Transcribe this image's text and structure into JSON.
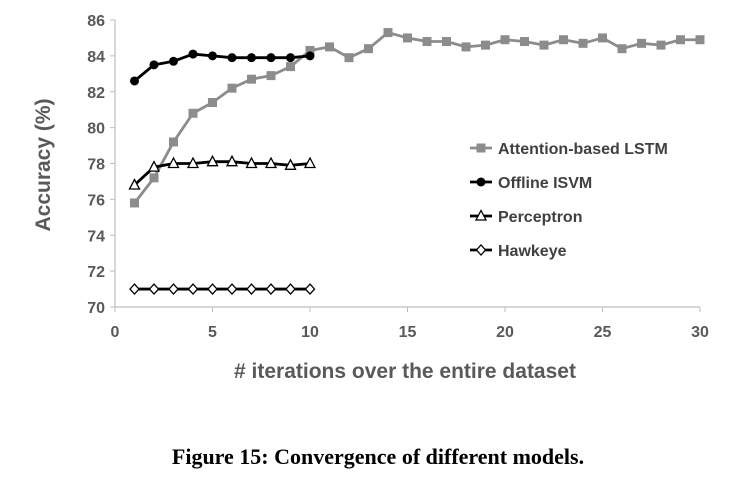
{
  "caption": "Figure 15: Convergence of different models.",
  "chart_data": {
    "type": "line",
    "xlabel": "# iterations over the entire dataset",
    "ylabel": "Accuracy (%)",
    "xlim": [
      0,
      30
    ],
    "ylim": [
      70,
      86
    ],
    "xticks": [
      0,
      5,
      10,
      15,
      20,
      25,
      30
    ],
    "yticks": [
      70,
      72,
      74,
      76,
      78,
      80,
      82,
      84,
      86
    ],
    "grid": false,
    "legend_position": "right",
    "series": [
      {
        "name": "Attention-based LSTM",
        "color": "#8c8c8c",
        "marker": "square",
        "x": [
          1,
          2,
          3,
          4,
          5,
          6,
          7,
          8,
          9,
          10,
          11,
          12,
          13,
          14,
          15,
          16,
          17,
          18,
          19,
          20,
          21,
          22,
          23,
          24,
          25,
          26,
          27,
          28,
          29,
          30
        ],
        "values": [
          75.8,
          77.2,
          79.2,
          80.8,
          81.4,
          82.2,
          82.7,
          82.9,
          83.4,
          84.3,
          84.5,
          83.9,
          84.4,
          85.3,
          85.0,
          84.8,
          84.8,
          84.5,
          84.6,
          84.9,
          84.8,
          84.6,
          84.9,
          84.7,
          85.0,
          84.4,
          84.7,
          84.6,
          84.9,
          84.9
        ]
      },
      {
        "name": "Offline ISVM",
        "color": "#000000",
        "marker": "circle",
        "x": [
          1,
          2,
          3,
          4,
          5,
          6,
          7,
          8,
          9,
          10
        ],
        "values": [
          82.6,
          83.5,
          83.7,
          84.1,
          84.0,
          83.9,
          83.9,
          83.9,
          83.9,
          84.0
        ]
      },
      {
        "name": "Perceptron",
        "color": "#000000",
        "marker": "triangle",
        "x": [
          1,
          2,
          3,
          4,
          5,
          6,
          7,
          8,
          9,
          10
        ],
        "values": [
          76.8,
          77.8,
          78.0,
          78.0,
          78.1,
          78.1,
          78.0,
          78.0,
          77.9,
          78.0
        ]
      },
      {
        "name": "Hawkeye",
        "color": "#000000",
        "marker": "diamond",
        "x": [
          1,
          2,
          3,
          4,
          5,
          6,
          7,
          8,
          9,
          10
        ],
        "values": [
          71.0,
          71.0,
          71.0,
          71.0,
          71.0,
          71.0,
          71.0,
          71.0,
          71.0,
          71.0
        ]
      }
    ]
  }
}
